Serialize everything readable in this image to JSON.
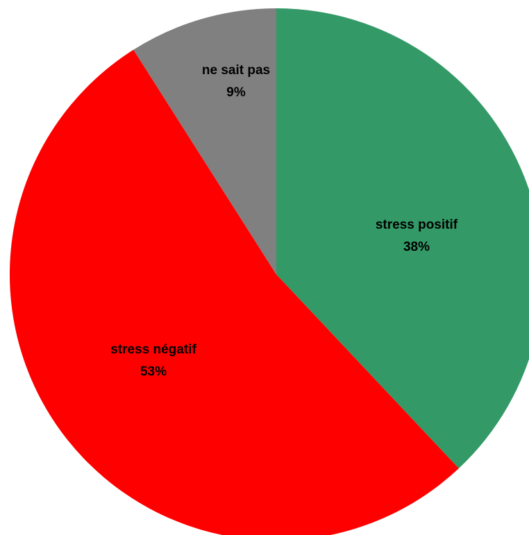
{
  "chart_data": {
    "type": "pie",
    "title": "",
    "start": "12 o'clock",
    "direction": "clockwise",
    "legend": "none",
    "slices": [
      {
        "label": "stress positif",
        "value": 38,
        "value_label": "38%",
        "color": "#339966"
      },
      {
        "label": "stress négatif",
        "value": 53,
        "value_label": "53%",
        "color": "#ff0000"
      },
      {
        "label": "ne sait pas",
        "value": 9,
        "value_label": "9%",
        "color": "#808080"
      }
    ]
  }
}
